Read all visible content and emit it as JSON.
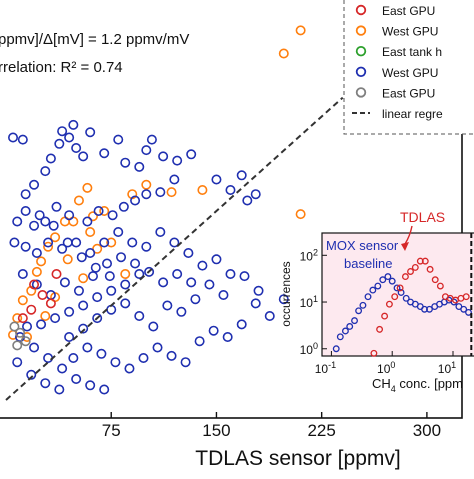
{
  "chart_data": {
    "type": "scatter",
    "xlabel": "TDLAS sensor [ppmv]",
    "x_ticks": [
      75,
      150,
      225,
      300
    ],
    "xlim": [
      0,
      335
    ],
    "ylim": [
      0,
      400
    ],
    "annotations": [
      "ppmv]/Δ[mV] = 1.2 ppmv/mV",
      "rrelation: R² = 0.74"
    ],
    "regression": {
      "slope": 1.2,
      "intercept": 0,
      "r2": 0.74
    },
    "legend": {
      "placement": "top-right",
      "items": [
        {
          "label": "East GPU",
          "color": "#d62728",
          "kind": "marker"
        },
        {
          "label": "West GPU",
          "color": "#ff7f0e",
          "kind": "marker"
        },
        {
          "label": "East tank h",
          "color": "#2ca02c",
          "kind": "marker"
        },
        {
          "label": "West GPU",
          "color": "#1f2fb0",
          "kind": "marker"
        },
        {
          "label": "East GPU",
          "color": "#7f7f7f",
          "kind": "marker"
        },
        {
          "label": "linear regre",
          "color": "#333333",
          "kind": "line"
        }
      ]
    },
    "series": [
      {
        "color": "#ff7f0e",
        "points": [
          [
            210,
            352
          ],
          [
            210,
            177
          ],
          [
            198,
            330
          ],
          [
            140,
            200
          ],
          [
            118,
            198
          ],
          [
            100,
            205
          ],
          [
            90,
            196
          ],
          [
            70,
            180
          ],
          [
            58,
            202
          ],
          [
            62,
            175
          ],
          [
            48,
            170
          ],
          [
            52,
            190
          ],
          [
            42,
            170
          ],
          [
            35,
            155
          ],
          [
            30,
            146
          ],
          [
            25,
            132
          ],
          [
            22,
            122
          ],
          [
            18,
            104
          ],
          [
            12,
            95
          ],
          [
            8,
            78
          ],
          [
            5,
            62
          ],
          [
            60,
            160
          ],
          [
            75,
            150
          ],
          [
            85,
            120
          ],
          [
            44,
            134
          ],
          [
            35,
            98
          ],
          [
            15,
            60
          ],
          [
            28,
            80
          ],
          [
            65,
            144
          ],
          [
            55,
            116
          ]
        ]
      },
      {
        "color": "#1f2fb0",
        "points": [
          [
            5,
            250
          ],
          [
            12,
            248
          ],
          [
            20,
            205
          ],
          [
            28,
            218
          ],
          [
            32,
            230
          ],
          [
            38,
            244
          ],
          [
            45,
            250
          ],
          [
            55,
            232
          ],
          [
            50,
            240
          ],
          [
            60,
            255
          ],
          [
            48,
            262
          ],
          [
            70,
            235
          ],
          [
            80,
            248
          ],
          [
            40,
            256
          ],
          [
            85,
            226
          ],
          [
            95,
            222
          ],
          [
            100,
            238
          ],
          [
            104,
            248
          ],
          [
            112,
            232
          ],
          [
            122,
            228
          ],
          [
            132,
            234
          ],
          [
            150,
            210
          ],
          [
            160,
            200
          ],
          [
            168,
            214
          ],
          [
            172,
            190
          ],
          [
            178,
            196
          ],
          [
            120,
            210
          ],
          [
            110,
            198
          ],
          [
            100,
            196
          ],
          [
            92,
            190
          ],
          [
            84,
            184
          ],
          [
            76,
            176
          ],
          [
            66,
            180
          ],
          [
            58,
            170
          ],
          [
            45,
            176
          ],
          [
            36,
            184
          ],
          [
            28,
            170
          ],
          [
            20,
            166
          ],
          [
            14,
            180
          ],
          [
            8,
            170
          ],
          [
            6,
            150
          ],
          [
            14,
            146
          ],
          [
            22,
            140
          ],
          [
            30,
            150
          ],
          [
            40,
            144
          ],
          [
            50,
            150
          ],
          [
            60,
            140
          ],
          [
            70,
            150
          ],
          [
            80,
            160
          ],
          [
            90,
            150
          ],
          [
            100,
            146
          ],
          [
            110,
            160
          ],
          [
            120,
            150
          ],
          [
            130,
            140
          ],
          [
            140,
            128
          ],
          [
            150,
            134
          ],
          [
            160,
            120
          ],
          [
            170,
            118
          ],
          [
            180,
            104
          ],
          [
            95,
            120
          ],
          [
            85,
            110
          ],
          [
            75,
            104
          ],
          [
            65,
            98
          ],
          [
            55,
            90
          ],
          [
            45,
            84
          ],
          [
            35,
            78
          ],
          [
            25,
            72
          ],
          [
            15,
            70
          ],
          [
            10,
            60
          ],
          [
            20,
            50
          ],
          [
            30,
            40
          ],
          [
            40,
            30
          ],
          [
            50,
            20
          ],
          [
            60,
            14
          ],
          [
            70,
            10
          ],
          [
            45,
            60
          ],
          [
            55,
            68
          ],
          [
            65,
            78
          ],
          [
            75,
            86
          ],
          [
            85,
            92
          ],
          [
            95,
            80
          ],
          [
            105,
            70
          ],
          [
            115,
            90
          ],
          [
            125,
            84
          ],
          [
            135,
            96
          ],
          [
            145,
            110
          ],
          [
            155,
            100
          ],
          [
            12,
            120
          ],
          [
            22,
            110
          ],
          [
            32,
            100
          ],
          [
            42,
            112
          ],
          [
            52,
            104
          ],
          [
            62,
            118
          ],
          [
            72,
            130
          ],
          [
            82,
            136
          ],
          [
            92,
            130
          ],
          [
            102,
            122
          ],
          [
            112,
            112
          ],
          [
            122,
            120
          ],
          [
            132,
            112
          ],
          [
            8,
            36
          ],
          [
            18,
            24
          ],
          [
            28,
            16
          ],
          [
            38,
            10
          ],
          [
            48,
            40
          ],
          [
            58,
            50
          ],
          [
            68,
            44
          ],
          [
            78,
            36
          ],
          [
            88,
            30
          ],
          [
            98,
            40
          ],
          [
            108,
            50
          ],
          [
            118,
            42
          ],
          [
            128,
            36
          ],
          [
            138,
            56
          ],
          [
            148,
            66
          ],
          [
            158,
            60
          ],
          [
            168,
            72
          ],
          [
            178,
            92
          ],
          [
            188,
            80
          ],
          [
            198,
            96
          ],
          [
            74,
            118
          ],
          [
            64,
            126
          ],
          [
            54,
            136
          ],
          [
            44,
            150
          ],
          [
            34,
            166
          ],
          [
            24,
            176
          ],
          [
            14,
            196
          ]
        ]
      },
      {
        "color": "#d62728",
        "points": [
          [
            20,
            110
          ],
          [
            26,
            100
          ],
          [
            32,
            92
          ],
          [
            18,
            86
          ],
          [
            12,
            78
          ],
          [
            36,
            120
          ]
        ]
      },
      {
        "color": "#7f7f7f",
        "points": [
          [
            6,
            70
          ],
          [
            10,
            64
          ],
          [
            14,
            56
          ],
          [
            8,
            52
          ]
        ]
      }
    ],
    "inset": {
      "type": "scatter",
      "xlabel_parts": [
        "CH",
        "4",
        " conc. [ppm"
      ],
      "ylabel": "occurrences",
      "xscale": "log",
      "yscale": "log",
      "xlim": [
        0.07,
        30
      ],
      "ylim": [
        0.7,
        300
      ],
      "x_ticks": [
        {
          "v": 0.1,
          "label": "10",
          "exp": "-1"
        },
        {
          "v": 1,
          "label": "10",
          "exp": "0"
        },
        {
          "v": 10,
          "label": "10",
          "exp": "1"
        }
      ],
      "y_ticks": [
        {
          "v": 1,
          "label": "10",
          "exp": "0"
        },
        {
          "v": 10,
          "label": "10",
          "exp": "1"
        },
        {
          "v": 100,
          "label": "10",
          "exp": "2"
        }
      ],
      "labels": {
        "mox_line1": "MOX sensor",
        "mox_line2": "baseline",
        "tdlas": "TDLAS"
      },
      "cutoff_x": 20,
      "series": [
        {
          "name": "MOX",
          "color": "#1f2fb0",
          "points": [
            [
              0.12,
              1.0
            ],
            [
              0.14,
              1.8
            ],
            [
              0.17,
              2.4
            ],
            [
              0.2,
              3.0
            ],
            [
              0.24,
              4.0
            ],
            [
              0.28,
              6.5
            ],
            [
              0.33,
              8.5
            ],
            [
              0.4,
              13
            ],
            [
              0.48,
              18
            ],
            [
              0.58,
              22
            ],
            [
              0.7,
              30
            ],
            [
              0.85,
              35
            ],
            [
              1.0,
              28
            ],
            [
              1.2,
              20
            ],
            [
              1.4,
              16
            ],
            [
              1.7,
              12
            ],
            [
              2.0,
              10
            ],
            [
              2.4,
              9
            ],
            [
              2.9,
              8
            ],
            [
              3.4,
              7
            ],
            [
              4.1,
              7
            ],
            [
              5,
              8
            ],
            [
              6,
              9
            ],
            [
              7.2,
              10
            ],
            [
              8.6,
              11
            ],
            [
              10.4,
              10
            ],
            [
              12.5,
              8
            ],
            [
              15,
              7
            ],
            [
              18,
              6
            ]
          ]
        },
        {
          "name": "TDLAS",
          "color": "#d62728",
          "points": [
            [
              0.5,
              0.8
            ],
            [
              0.62,
              2.6
            ],
            [
              0.75,
              5
            ],
            [
              0.9,
              9
            ],
            [
              1.1,
              13
            ],
            [
              1.35,
              20
            ],
            [
              1.65,
              35
            ],
            [
              2.0,
              45
            ],
            [
              2.4,
              55
            ],
            [
              2.9,
              75
            ],
            [
              3.5,
              75
            ],
            [
              4.2,
              50
            ],
            [
              5.1,
              30
            ],
            [
              6.2,
              22
            ],
            [
              7.5,
              13
            ],
            [
              9,
              12
            ],
            [
              11,
              11
            ],
            [
              13.5,
              12
            ],
            [
              16.5,
              13
            ]
          ]
        }
      ]
    }
  }
}
